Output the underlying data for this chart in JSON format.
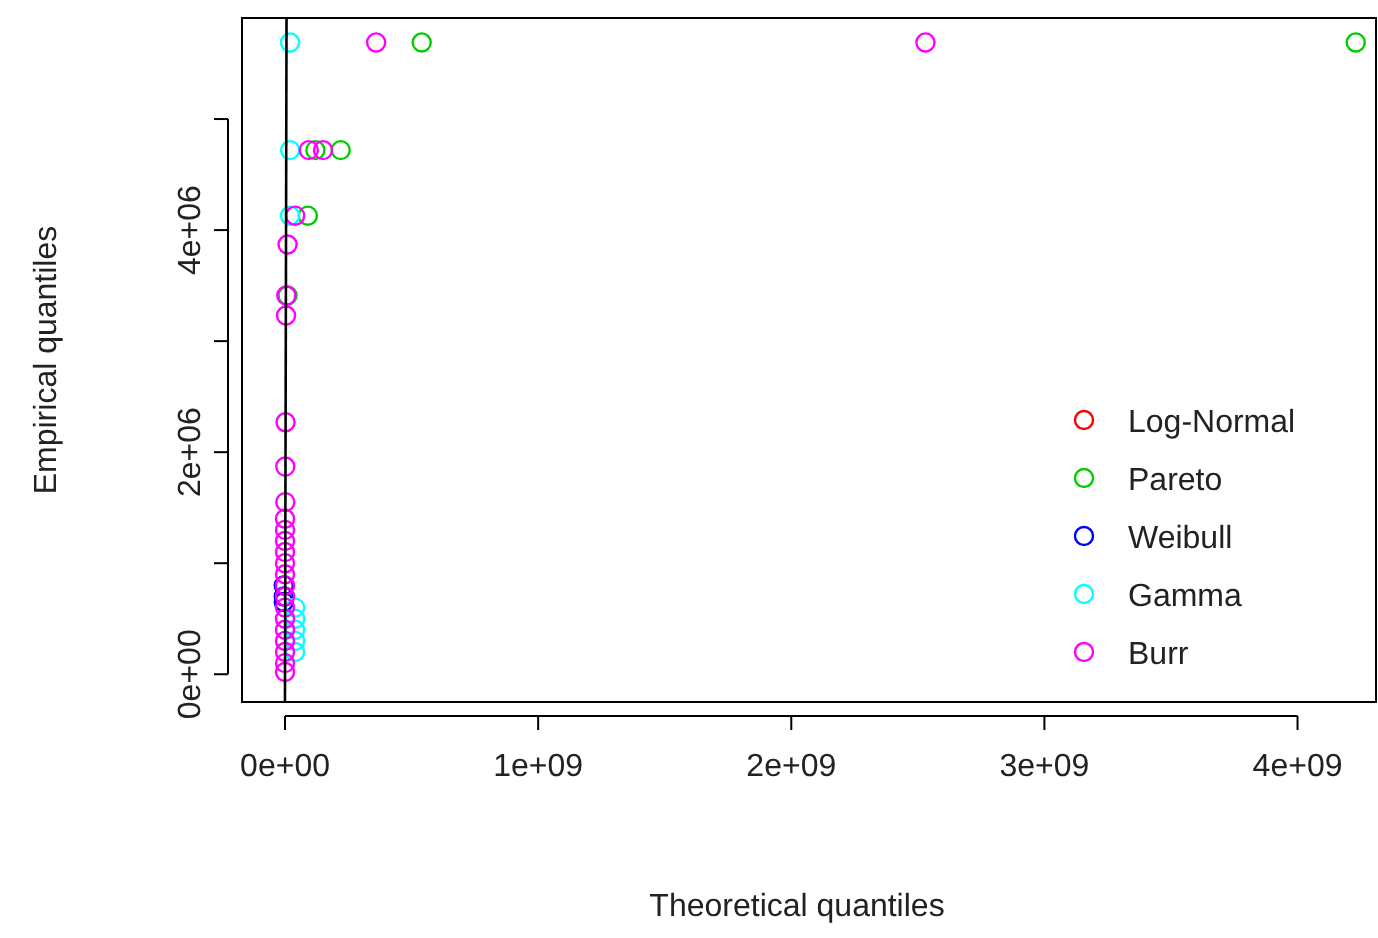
{
  "chart_data": {
    "type": "scatter",
    "xlabel": "Theoretical quantiles",
    "ylabel": "Empirical quantiles",
    "marker": "circle",
    "legend": "right",
    "grid": false,
    "xlim": [
      -170000000,
      4310000000
    ],
    "xticks": [
      {
        "value": 0,
        "label": "0e+00"
      },
      {
        "value": 1000000000,
        "label": "1e+09"
      },
      {
        "value": 2000000000,
        "label": "2e+09"
      },
      {
        "value": 3000000000,
        "label": "3e+09"
      },
      {
        "value": 4000000000,
        "label": "4e+09"
      }
    ],
    "ylim": [
      -250000,
      5910000
    ],
    "yticks": [
      {
        "value": 0,
        "label": "0e+00"
      },
      {
        "value": 1000000,
        "label": null
      },
      {
        "value": 2000000,
        "label": "2e+06"
      },
      {
        "value": 3000000,
        "label": null
      },
      {
        "value": 4000000,
        "label": "4e+06"
      },
      {
        "value": 5000000,
        "label": null
      }
    ],
    "series": [
      {
        "name": "Log-Normal",
        "color": "#ff0000"
      },
      {
        "name": "Pareto",
        "color": "#00cd00",
        "x": [
          4230000000,
          540000000,
          220000000,
          120000000,
          90000000,
          10000000
        ],
        "values": [
          5690000,
          5690000,
          4720000,
          4720000,
          4130000,
          3410000
        ]
      },
      {
        "name": "Weibull",
        "color": "#0000ff",
        "x": [
          -5000000,
          -5000000,
          -5000000
        ],
        "values": [
          800000,
          700000,
          650000
        ]
      },
      {
        "name": "Gamma",
        "color": "#00ffff",
        "x": [
          20000000,
          20000000,
          20000000,
          40000000,
          40000000,
          40000000,
          40000000,
          40000000
        ],
        "values": [
          5690000,
          4720000,
          4130000,
          600000,
          500000,
          400000,
          300000,
          200000
        ]
      },
      {
        "name": "Burr",
        "color": "#ff00ff",
        "x": [
          2530000000,
          360000000,
          150000000,
          94000000,
          40000000,
          10000000,
          5000000,
          4000000,
          2000000,
          1000000,
          1000000,
          0,
          0,
          0,
          0,
          0,
          0,
          0,
          0,
          0,
          0,
          0,
          0,
          0,
          0,
          0
        ],
        "values": [
          5690000,
          5690000,
          4720000,
          4720000,
          4130000,
          3870000,
          3410000,
          3230000,
          2270000,
          1870000,
          1550000,
          1400000,
          1300000,
          1200000,
          1100000,
          1000000,
          900000,
          800000,
          700000,
          600000,
          500000,
          400000,
          300000,
          200000,
          100000,
          20000
        ]
      },
      {
        "type": "line",
        "marker": "none",
        "color": "#000000",
        "x": [
          -250000,
          5910000
        ],
        "values": [
          -250000,
          5910000
        ]
      }
    ]
  }
}
